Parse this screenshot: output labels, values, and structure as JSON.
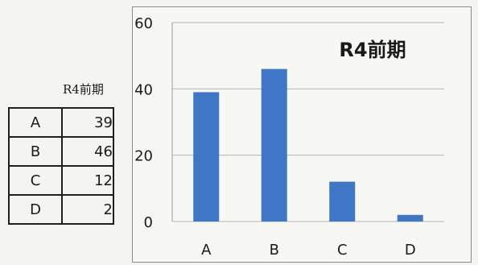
{
  "table": {
    "caption": "R4前期",
    "rows": [
      {
        "category": "A",
        "value": "39"
      },
      {
        "category": "B",
        "value": "46"
      },
      {
        "category": "C",
        "value": "12"
      },
      {
        "category": "D",
        "value": "2"
      }
    ]
  },
  "chart_data": {
    "type": "bar",
    "title": "R4前期",
    "categories": [
      "A",
      "B",
      "C",
      "D"
    ],
    "values": [
      39,
      46,
      12,
      2
    ],
    "ylim": [
      0,
      60
    ],
    "yticks": [
      0,
      20,
      40,
      60
    ],
    "grid": true,
    "bar_color": "#3f76c6",
    "grid_color": "#b5b5b5",
    "xlabel": "",
    "ylabel": ""
  }
}
